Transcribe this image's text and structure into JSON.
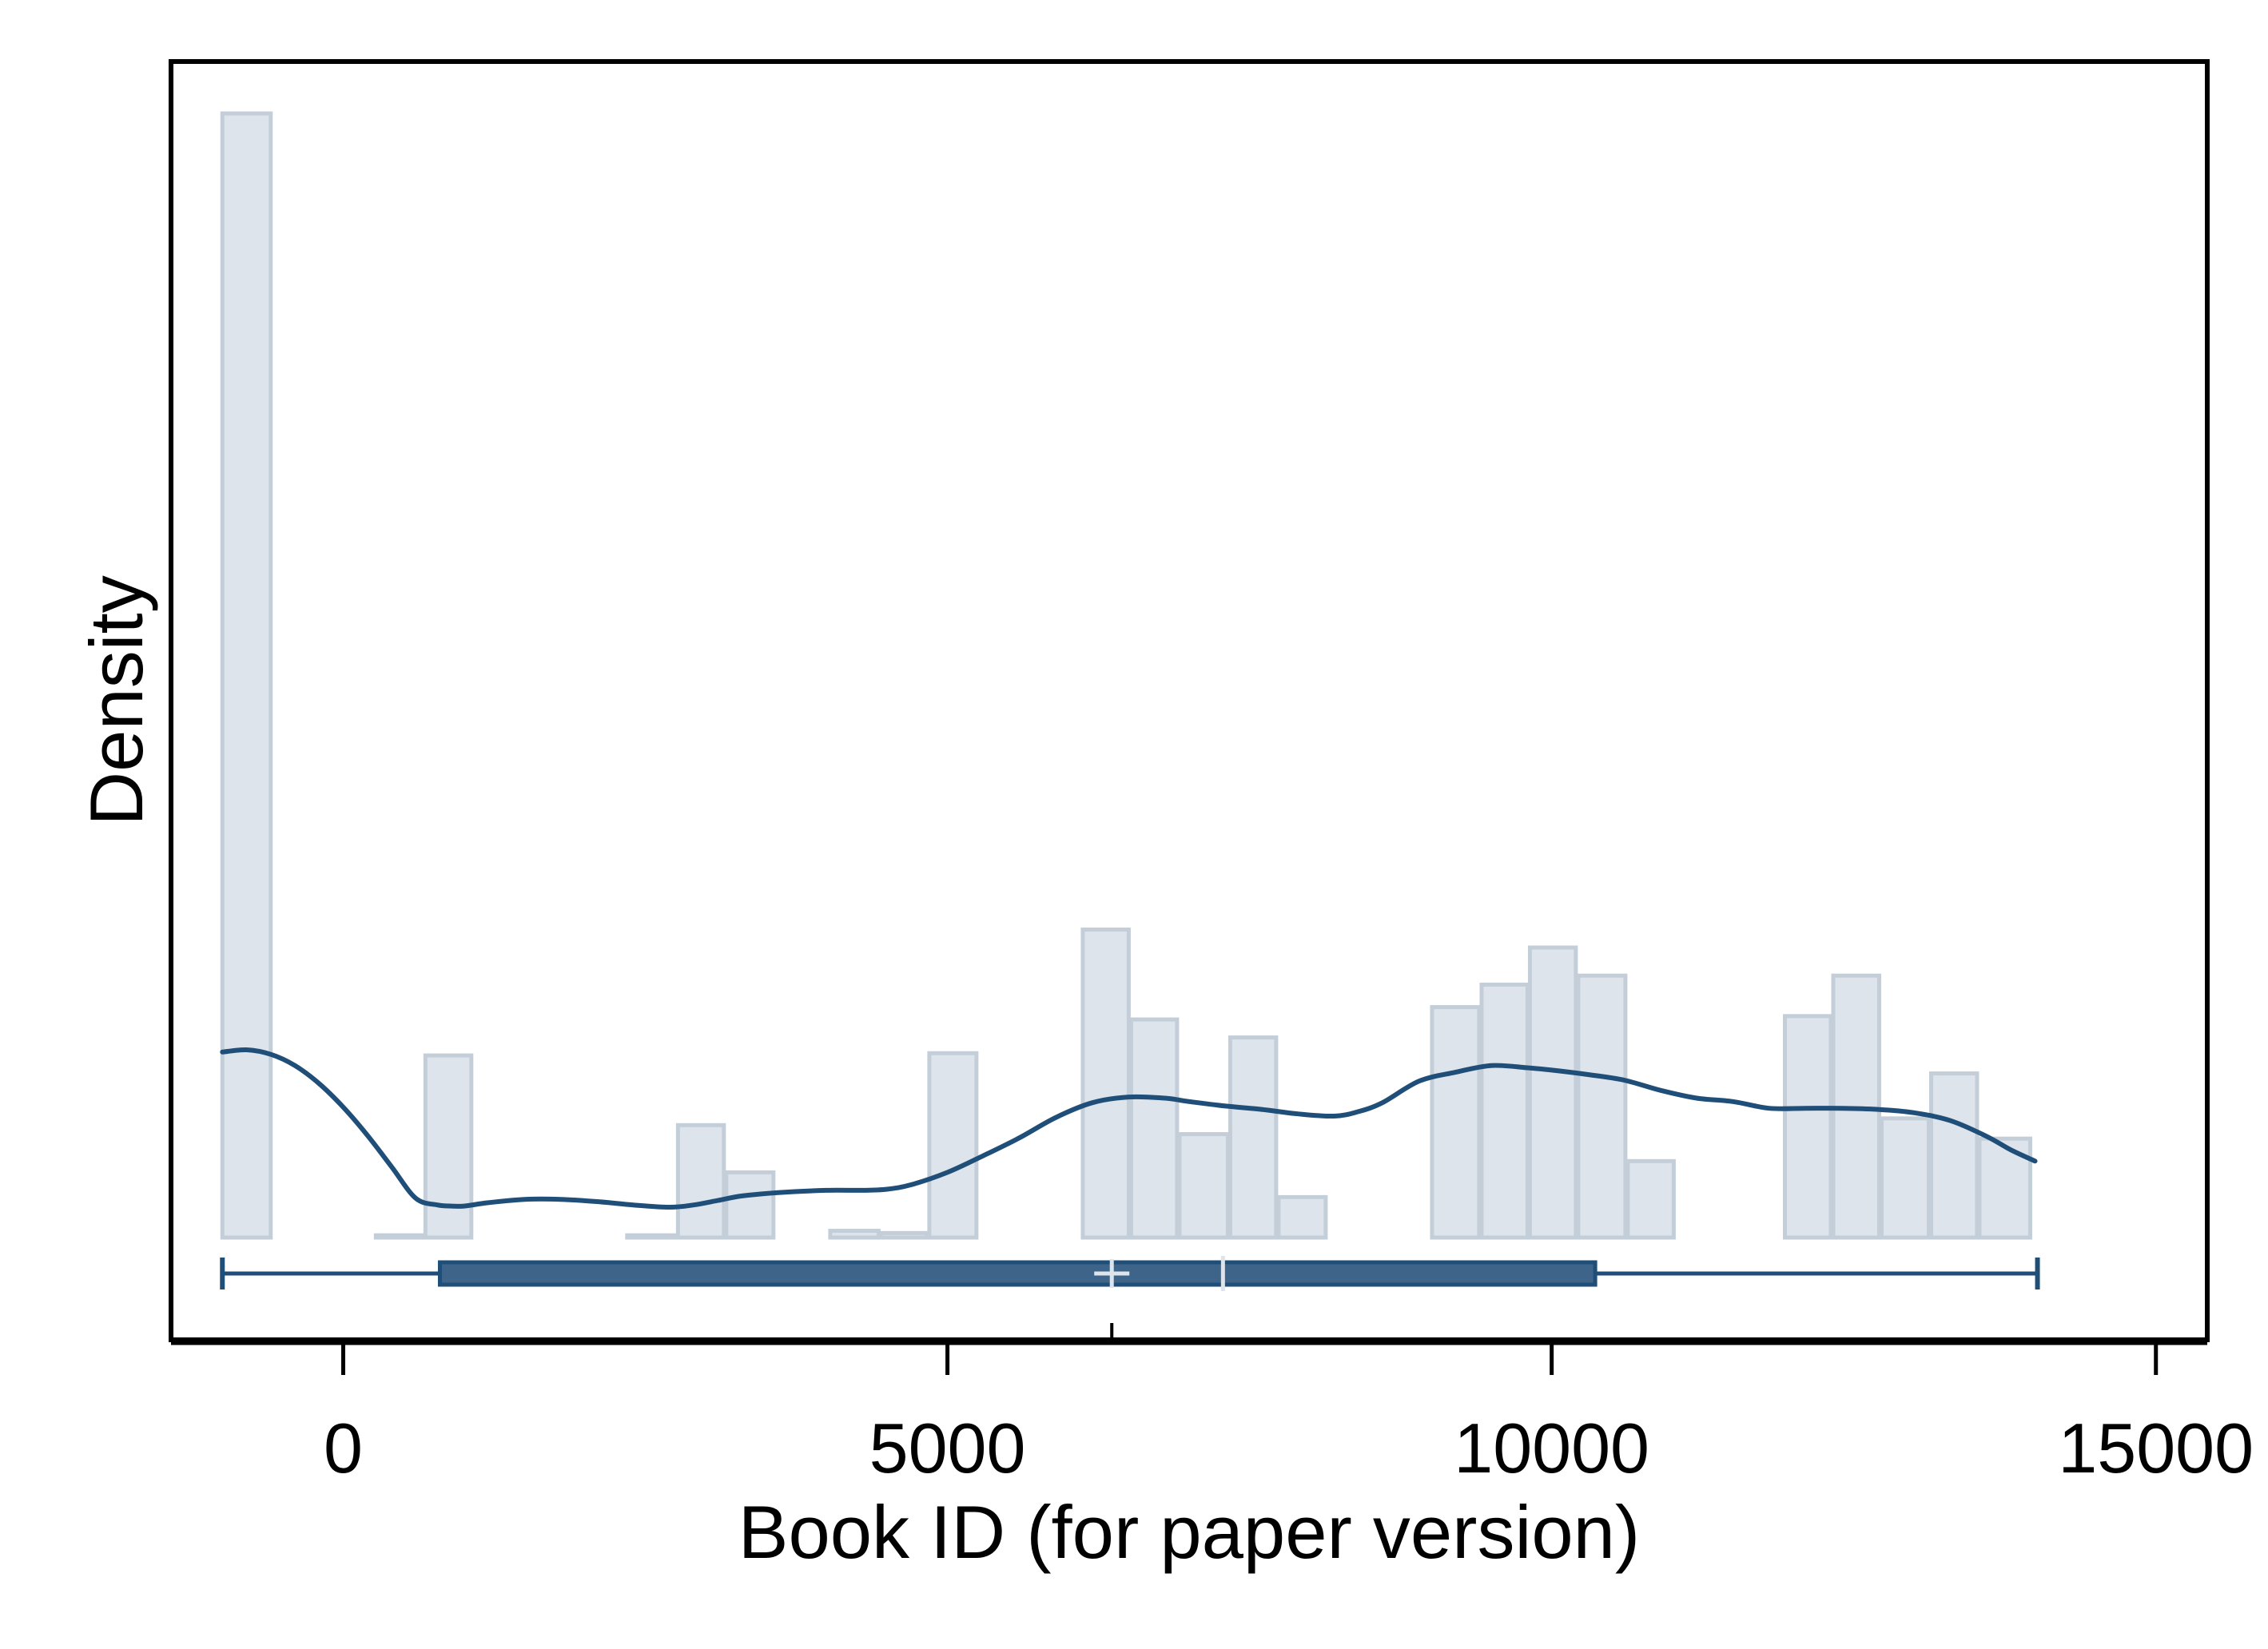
{
  "chart_data": {
    "type": "bar",
    "title": "",
    "xlabel": "Book ID (for paper version)",
    "ylabel": "Density",
    "xlim": [
      -1425,
      15425
    ],
    "x_ticks": [
      0,
      5000,
      10000,
      15000
    ],
    "x_tick_labels": [
      "0",
      "5000",
      "10000",
      "15000"
    ],
    "y_ticks": [],
    "grid": false,
    "legend": "none",
    "colors": {
      "bar_fill": "#dde4eb",
      "bar_stroke": "#c3ced8",
      "density_line": "#1f4e79",
      "box_fill": "#3f6489",
      "box_stroke": "#1f4e79",
      "markers": "#dde4eb"
    },
    "histogram": {
      "relative_density_max": 1.0,
      "bins": [
        {
          "x0": -1000,
          "x1": -600,
          "density": 1.0
        },
        {
          "x0": 270,
          "x1": 670,
          "density": 0.002
        },
        {
          "x0": 680,
          "x1": 1060,
          "density": 0.162
        },
        {
          "x0": 2350,
          "x1": 2750,
          "density": 0.002
        },
        {
          "x0": 2770,
          "x1": 3150,
          "density": 0.1
        },
        {
          "x0": 3170,
          "x1": 3560,
          "density": 0.058
        },
        {
          "x0": 4030,
          "x1": 4430,
          "density": 0.006
        },
        {
          "x0": 4450,
          "x1": 4830,
          "density": 0.004
        },
        {
          "x0": 4850,
          "x1": 5240,
          "density": 0.164
        },
        {
          "x0": 6120,
          "x1": 6500,
          "density": 0.274
        },
        {
          "x0": 6520,
          "x1": 6900,
          "density": 0.194
        },
        {
          "x0": 6920,
          "x1": 7320,
          "density": 0.092
        },
        {
          "x0": 7340,
          "x1": 7720,
          "density": 0.178
        },
        {
          "x0": 7740,
          "x1": 8130,
          "density": 0.036
        },
        {
          "x0": 9010,
          "x1": 9400,
          "density": 0.205
        },
        {
          "x0": 9420,
          "x1": 9800,
          "density": 0.225
        },
        {
          "x0": 9820,
          "x1": 10200,
          "density": 0.258
        },
        {
          "x0": 10220,
          "x1": 10610,
          "density": 0.233
        },
        {
          "x0": 10630,
          "x1": 11010,
          "density": 0.068
        },
        {
          "x0": 11930,
          "x1": 12310,
          "density": 0.197
        },
        {
          "x0": 12330,
          "x1": 12710,
          "density": 0.233
        },
        {
          "x0": 12730,
          "x1": 13120,
          "density": 0.106
        },
        {
          "x0": 13140,
          "x1": 13520,
          "density": 0.146
        },
        {
          "x0": 13540,
          "x1": 13960,
          "density": 0.088
        }
      ]
    },
    "density_curve": {
      "x": [
        -1000,
        -800,
        -600,
        -400,
        -200,
        0,
        200,
        400,
        600,
        780,
        900,
        1000,
        1200,
        1500,
        1800,
        2100,
        2400,
        2700,
        2900,
        3100,
        3300,
        3600,
        4000,
        4300,
        4500,
        4700,
        5000,
        5300,
        5600,
        5900,
        6200,
        6500,
        6800,
        7000,
        7300,
        7600,
        7900,
        8200,
        8400,
        8600,
        8900,
        9200,
        9500,
        9800,
        10000,
        10300,
        10600,
        10900,
        11200,
        11500,
        11800,
        12100,
        12400,
        12700,
        13000,
        13300,
        13600,
        13800,
        14000
      ],
      "y": [
        0.165,
        0.167,
        0.163,
        0.153,
        0.137,
        0.116,
        0.091,
        0.063,
        0.035,
        0.029,
        0.028,
        0.028,
        0.031,
        0.034,
        0.034,
        0.032,
        0.029,
        0.027,
        0.029,
        0.033,
        0.037,
        0.04,
        0.042,
        0.042,
        0.043,
        0.047,
        0.058,
        0.073,
        0.089,
        0.107,
        0.12,
        0.125,
        0.124,
        0.121,
        0.117,
        0.114,
        0.11,
        0.108,
        0.112,
        0.12,
        0.139,
        0.147,
        0.153,
        0.151,
        0.149,
        0.145,
        0.14,
        0.131,
        0.124,
        0.121,
        0.115,
        0.115,
        0.115,
        0.114,
        0.111,
        0.104,
        0.09,
        0.078,
        0.068
      ]
    },
    "box_plot": {
      "whisker_low": -1000,
      "q1": 800,
      "median": 7280,
      "mean": 6360,
      "q3": 10360,
      "whisker_high": 14020
    }
  }
}
